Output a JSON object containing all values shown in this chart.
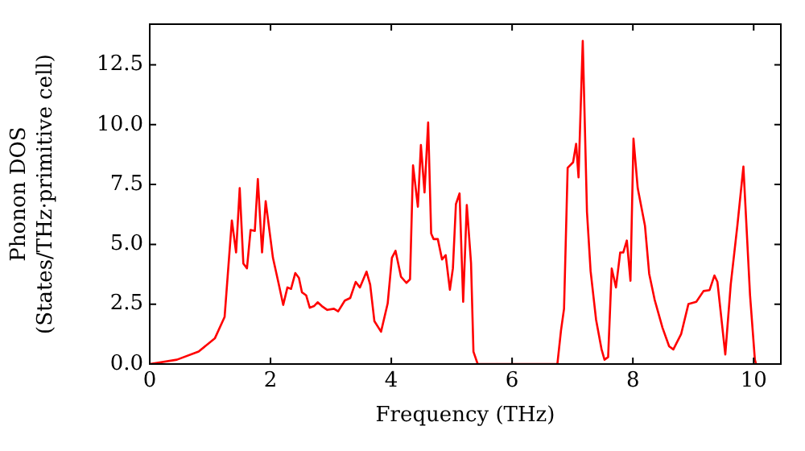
{
  "chart_data": {
    "type": "line",
    "xlabel": "Frequency (THz)",
    "ylabel": "Phonon DOS\n(States/THz·primitive cell)",
    "xlim": [
      0,
      10.45
    ],
    "ylim": [
      0,
      14.2
    ],
    "xticks": [
      0,
      2,
      4,
      6,
      8,
      10
    ],
    "yticks": [
      {
        "value": 0,
        "label": "0.0"
      },
      {
        "value": 2.5,
        "label": "2.5"
      },
      {
        "value": 5,
        "label": "5.0"
      },
      {
        "value": 7.5,
        "label": "7.5"
      },
      {
        "value": 10,
        "label": "10.0"
      },
      {
        "value": 12.5,
        "label": "12.5"
      }
    ],
    "grid": false,
    "legend": false,
    "marker": "none",
    "line_style": "solid",
    "series": [
      {
        "color": "#ff0000",
        "x": [
          0,
          0.45,
          0.81,
          1.08,
          1.24,
          1.36,
          1.43,
          1.49,
          1.55,
          1.61,
          1.67,
          1.74,
          1.79,
          1.86,
          1.92,
          2.04,
          2.14,
          2.21,
          2.28,
          2.34,
          2.41,
          2.47,
          2.52,
          2.59,
          2.65,
          2.72,
          2.78,
          2.85,
          2.94,
          3.05,
          3.12,
          3.23,
          3.32,
          3.41,
          3.48,
          3.59,
          3.65,
          3.72,
          3.83,
          3.94,
          4.01,
          4.07,
          4.16,
          4.25,
          4.31,
          4.36,
          4.44,
          4.49,
          4.55,
          4.61,
          4.66,
          4.7,
          4.77,
          4.84,
          4.9,
          4.97,
          5.02,
          5.07,
          5.13,
          5.19,
          5.25,
          5.32,
          5.36,
          5.43,
          6.75,
          6.81,
          6.86,
          6.92,
          7.01,
          7.06,
          7.1,
          7.17,
          7.24,
          7.3,
          7.39,
          7.48,
          7.53,
          7.59,
          7.65,
          7.72,
          7.79,
          7.84,
          7.9,
          7.96,
          8.01,
          8.08,
          8.2,
          8.27,
          8.36,
          8.49,
          8.6,
          8.67,
          8.8,
          8.92,
          9.05,
          9.17,
          9.27,
          9.35,
          9.4,
          9.53,
          9.62,
          9.73,
          9.83,
          9.94,
          10.02,
          10.04
        ],
        "values": [
          0,
          0.18,
          0.52,
          1.08,
          1.97,
          6.0,
          4.66,
          7.35,
          4.2,
          4.0,
          5.6,
          5.56,
          7.73,
          4.66,
          6.8,
          4.44,
          3.3,
          2.47,
          3.2,
          3.14,
          3.8,
          3.6,
          3.0,
          2.87,
          2.35,
          2.42,
          2.58,
          2.42,
          2.26,
          2.31,
          2.2,
          2.65,
          2.76,
          3.43,
          3.2,
          3.86,
          3.32,
          1.79,
          1.35,
          2.53,
          4.44,
          4.73,
          3.65,
          3.39,
          3.54,
          8.3,
          6.57,
          9.15,
          7.17,
          10.09,
          5.45,
          5.22,
          5.22,
          4.37,
          4.55,
          3.1,
          4.0,
          6.68,
          7.13,
          2.6,
          6.64,
          4.22,
          0.52,
          0,
          0,
          1.41,
          2.31,
          8.2,
          8.43,
          9.2,
          7.8,
          13.5,
          6.35,
          3.88,
          1.86,
          0.63,
          0.18,
          0.29,
          3.99,
          3.2,
          4.66,
          4.66,
          5.16,
          3.48,
          9.42,
          7.35,
          5.78,
          3.77,
          2.69,
          1.52,
          0.74,
          0.61,
          1.26,
          2.51,
          2.6,
          3.05,
          3.09,
          3.7,
          3.43,
          0.4,
          3.32,
          5.78,
          8.25,
          2.87,
          0.18,
          0
        ]
      }
    ]
  }
}
